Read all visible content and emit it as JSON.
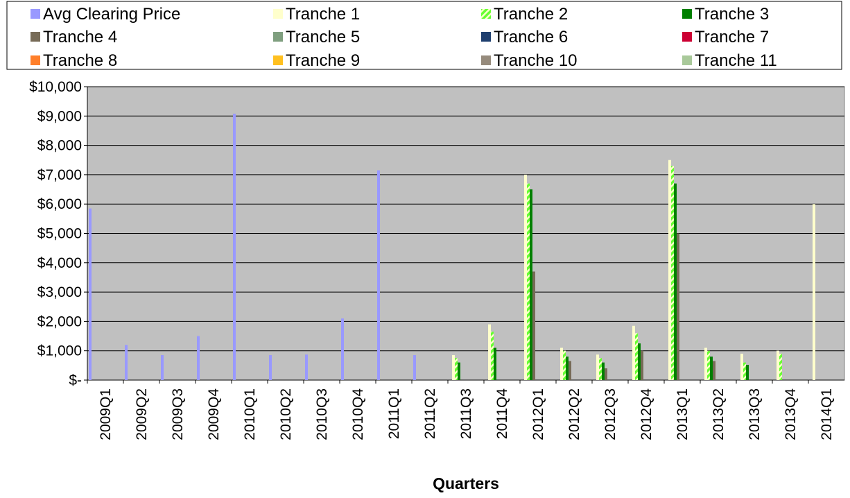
{
  "chart_data": {
    "type": "bar",
    "x_label": "Quarters",
    "categories": [
      "2009Q1",
      "2009Q2",
      "2009Q3",
      "2009Q4",
      "2010Q1",
      "2010Q2",
      "2010Q3",
      "2010Q4",
      "2011Q1",
      "2011Q2",
      "2011Q3",
      "2011Q4",
      "2012Q1",
      "2012Q2",
      "2012Q3",
      "2012Q4",
      "2013Q1",
      "2013Q2",
      "2013Q3",
      "2013Q4",
      "2014Q1"
    ],
    "series": [
      {
        "name": "Avg Clearing Price",
        "color": "#9999ff",
        "values": [
          5850,
          1200,
          850,
          1500,
          9080,
          850,
          870,
          2100,
          7150,
          850,
          null,
          null,
          null,
          null,
          null,
          null,
          null,
          null,
          null,
          null,
          null
        ]
      },
      {
        "name": "Tranche 1",
        "color": "#ffffcc",
        "values": [
          null,
          null,
          null,
          null,
          null,
          null,
          null,
          null,
          null,
          null,
          850,
          1900,
          7000,
          1100,
          870,
          1850,
          7500,
          1100,
          900,
          1000,
          6000
        ]
      },
      {
        "name": "Tranche 2",
        "color": "#66ff33",
        "pattern": "hatch",
        "values": [
          null,
          null,
          null,
          null,
          null,
          null,
          null,
          null,
          null,
          null,
          750,
          1650,
          6700,
          1000,
          750,
          1600,
          7300,
          1000,
          600,
          900,
          null
        ]
      },
      {
        "name": "Tranche 3",
        "color": "#008000",
        "values": [
          null,
          null,
          null,
          null,
          null,
          null,
          null,
          null,
          null,
          null,
          600,
          1100,
          6500,
          800,
          600,
          1250,
          6700,
          800,
          520,
          null,
          null
        ]
      },
      {
        "name": "Tranche 4",
        "color": "#776b57",
        "values": [
          null,
          null,
          null,
          null,
          null,
          null,
          null,
          null,
          null,
          null,
          null,
          null,
          3700,
          650,
          400,
          1000,
          5000,
          650,
          null,
          null,
          null
        ]
      },
      {
        "name": "Tranche 5",
        "color": "#7f9f7f",
        "values": [
          null,
          null,
          null,
          null,
          null,
          null,
          null,
          null,
          null,
          null,
          null,
          null,
          null,
          null,
          null,
          null,
          null,
          null,
          null,
          null,
          null
        ]
      },
      {
        "name": "Tranche 6",
        "color": "#1f3f6f",
        "values": [
          null,
          null,
          null,
          null,
          null,
          null,
          null,
          null,
          null,
          null,
          null,
          null,
          null,
          null,
          null,
          null,
          null,
          null,
          null,
          null,
          null
        ]
      },
      {
        "name": "Tranche 7",
        "color": "#cc0033",
        "values": [
          null,
          null,
          null,
          null,
          null,
          null,
          null,
          null,
          null,
          null,
          null,
          null,
          null,
          null,
          null,
          null,
          null,
          null,
          null,
          null,
          null
        ]
      },
      {
        "name": "Tranche 8",
        "color": "#ff7f2a",
        "values": [
          null,
          null,
          null,
          null,
          null,
          null,
          null,
          null,
          null,
          null,
          null,
          null,
          null,
          null,
          null,
          null,
          null,
          null,
          null,
          null,
          null
        ]
      },
      {
        "name": "Tranche 9",
        "color": "#ffc020",
        "values": [
          null,
          null,
          null,
          null,
          null,
          null,
          null,
          null,
          null,
          null,
          null,
          null,
          null,
          null,
          null,
          null,
          null,
          null,
          null,
          null,
          null
        ]
      },
      {
        "name": "Tranche 10",
        "color": "#968b7c",
        "values": [
          null,
          null,
          null,
          null,
          null,
          null,
          null,
          null,
          null,
          null,
          null,
          null,
          null,
          null,
          null,
          null,
          null,
          null,
          null,
          null,
          null
        ]
      },
      {
        "name": "Tranche 11",
        "color": "#a9c99a",
        "values": [
          null,
          null,
          null,
          null,
          null,
          null,
          null,
          null,
          null,
          null,
          null,
          null,
          null,
          null,
          null,
          null,
          null,
          null,
          null,
          null,
          null
        ]
      }
    ],
    "ylim": [
      0,
      10000
    ],
    "yticks": [
      {
        "value": 0,
        "label": "$-"
      },
      {
        "value": 1000,
        "label": "$1,000"
      },
      {
        "value": 2000,
        "label": "$2,000"
      },
      {
        "value": 3000,
        "label": "$3,000"
      },
      {
        "value": 4000,
        "label": "$4,000"
      },
      {
        "value": 5000,
        "label": "$5,000"
      },
      {
        "value": 6000,
        "label": "$6,000"
      },
      {
        "value": 7000,
        "label": "$7,000"
      },
      {
        "value": 8000,
        "label": "$8,000"
      },
      {
        "value": 9000,
        "label": "$9,000"
      },
      {
        "value": 10000,
        "label": "$10,000"
      }
    ],
    "grid": true,
    "legend": "top"
  }
}
